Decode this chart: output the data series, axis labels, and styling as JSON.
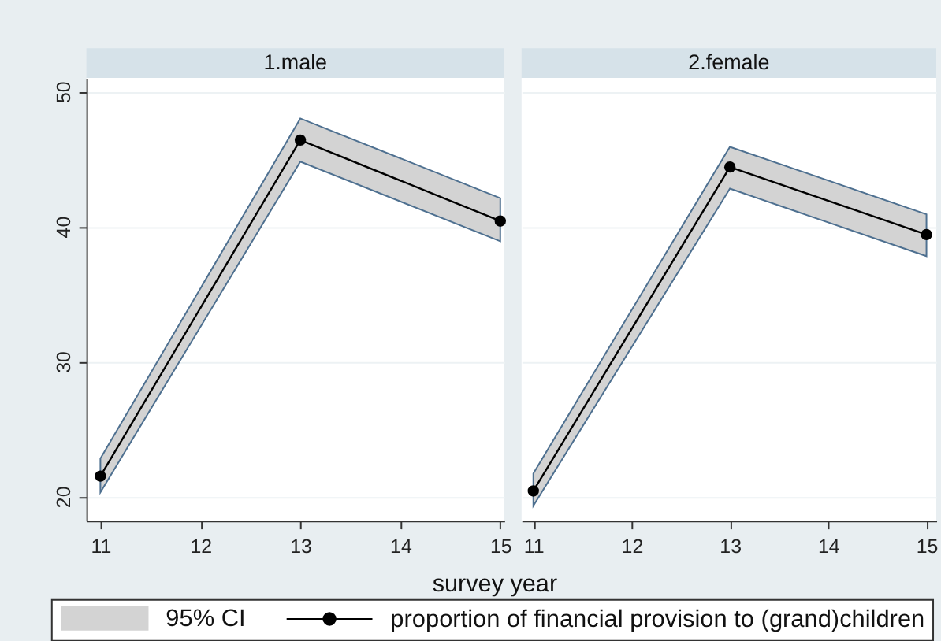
{
  "chart_data": [
    {
      "type": "line",
      "title": "1.male",
      "xlabel": "survey year",
      "x": [
        11,
        13,
        15
      ],
      "series": [
        {
          "name": "95% CI",
          "type": "area",
          "color": "#d3d3d3",
          "values": [
            null,
            null,
            null
          ],
          "lower": [
            20.3,
            44.8,
            38.9
          ],
          "upper": [
            22.8,
            48.0,
            42.1
          ]
        },
        {
          "name": "proportion of financial provision to (grand)children",
          "color": "#000000",
          "values": [
            21.5,
            46.4,
            40.4
          ]
        }
      ],
      "xlim": [
        10.86,
        15.04
      ],
      "ylim": [
        18.2,
        51
      ],
      "xticks": [
        11,
        12,
        13,
        14,
        15
      ],
      "yticks": [
        20,
        30,
        40,
        50
      ],
      "grid": "y",
      "legend": "bottom",
      "marker": "circle",
      "line_style": "solid"
    },
    {
      "type": "line",
      "title": "2.female",
      "x": [
        11,
        13,
        15
      ],
      "series": [
        {
          "type": "area",
          "color": "#d3d3d3",
          "values": [
            null,
            null,
            null
          ],
          "lower": [
            19.3,
            42.8,
            37.8
          ],
          "upper": [
            21.7,
            45.9,
            40.9
          ]
        },
        {
          "name": "proportion of financial provision to (grand)children",
          "color": "#000000",
          "values": [
            20.4,
            44.4,
            39.4
          ]
        }
      ],
      "xlim": [
        10.88,
        15.1
      ],
      "ylim": [
        18.2,
        51
      ],
      "xticks": [
        11,
        12,
        13,
        14,
        15
      ],
      "yticks": [
        20,
        30,
        40,
        50
      ],
      "tick_labels": "x",
      "grid": "y",
      "marker": "circle",
      "line_style": "solid"
    }
  ]
}
